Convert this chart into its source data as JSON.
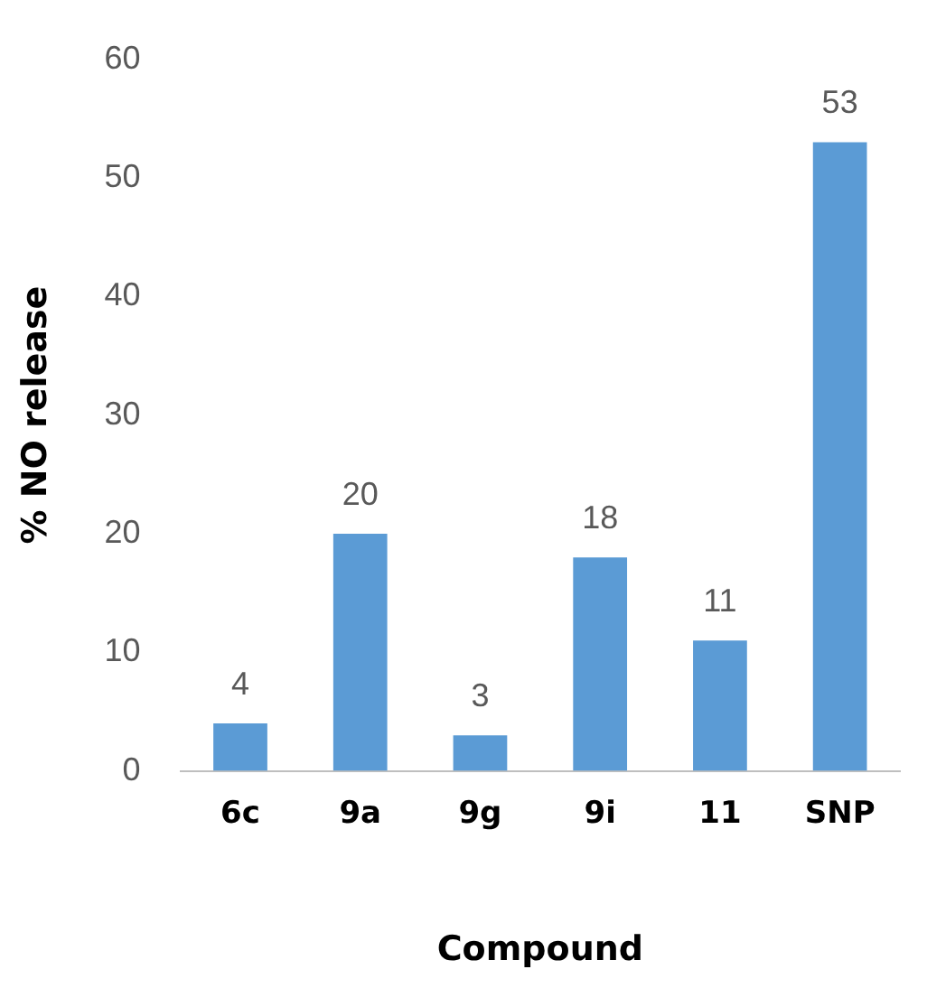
{
  "chart_data": {
    "type": "bar",
    "xlabel": "Compound",
    "ylabel": "% NO release",
    "categories": [
      "6c",
      "9a",
      "9g",
      "9i",
      "11",
      "SNP"
    ],
    "values": [
      4,
      20,
      3,
      18,
      11,
      53
    ],
    "color": "#5b9bd5",
    "ylim": [
      0,
      60
    ],
    "yticks": [
      0,
      10,
      20,
      30,
      40,
      50,
      60
    ],
    "grid": false,
    "legend": false,
    "data_labels": true
  }
}
